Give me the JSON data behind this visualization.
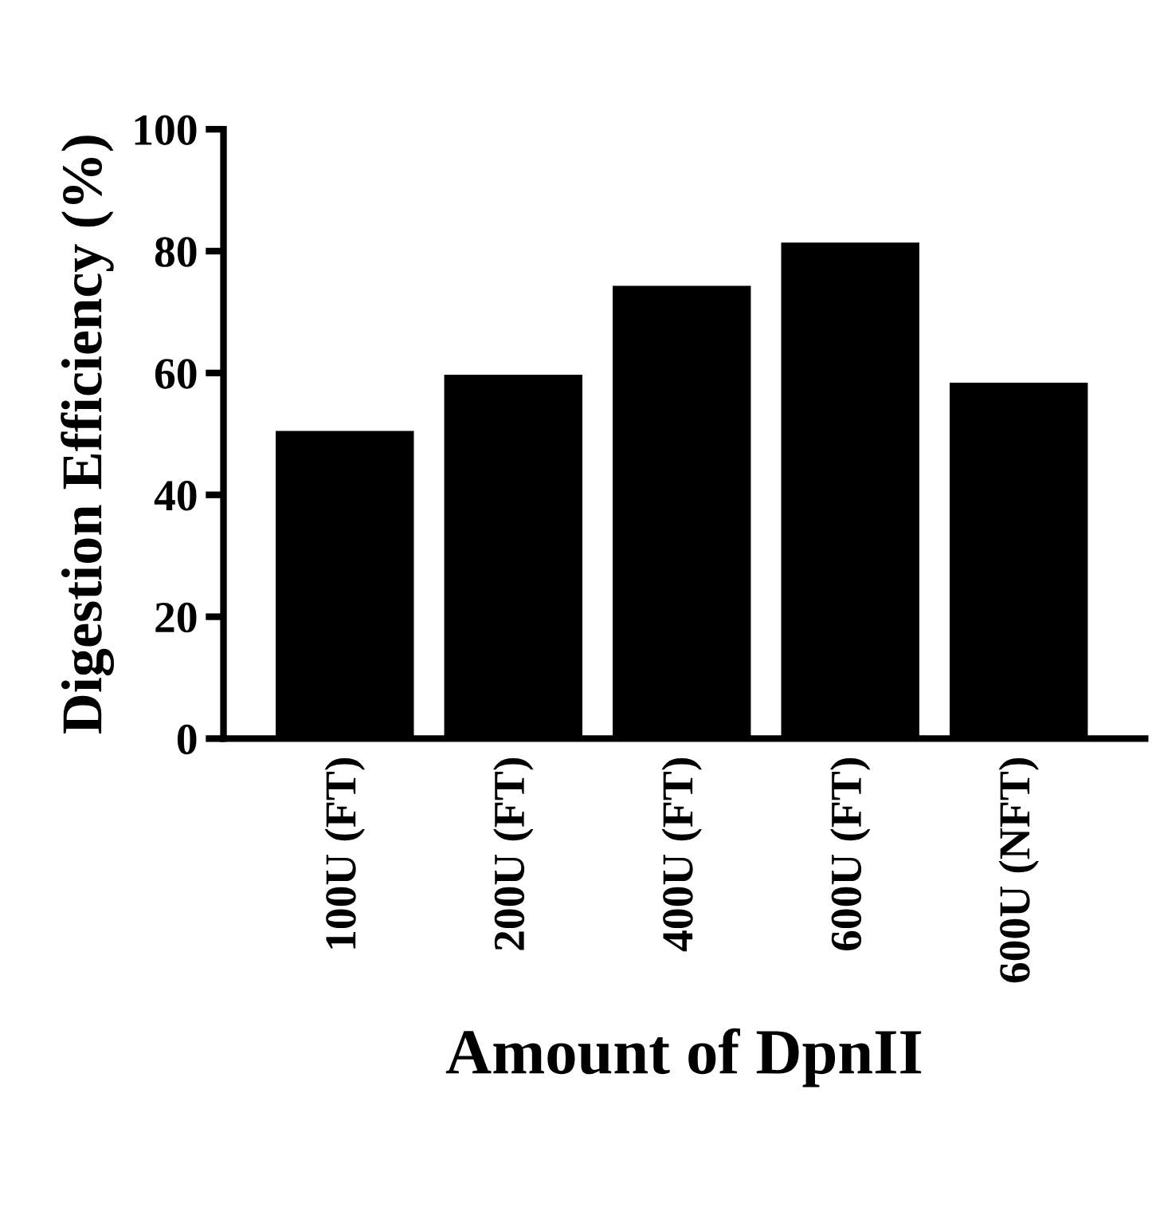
{
  "chart_data": {
    "type": "bar",
    "xlabel": "Amount of DpnII",
    "ylabel": "Digestion Efficiency (%)",
    "categories": [
      "100U (FT)",
      "200U (FT)",
      "400U (FT)",
      "600U (FT)",
      "600U (NFT)"
    ],
    "values": [
      50.5,
      59.7,
      74.3,
      81.4,
      58.4
    ],
    "color": "#000000",
    "ylim": [
      0,
      100
    ],
    "yticks": [
      0,
      20,
      40,
      60,
      80,
      100
    ],
    "grid": false
  }
}
